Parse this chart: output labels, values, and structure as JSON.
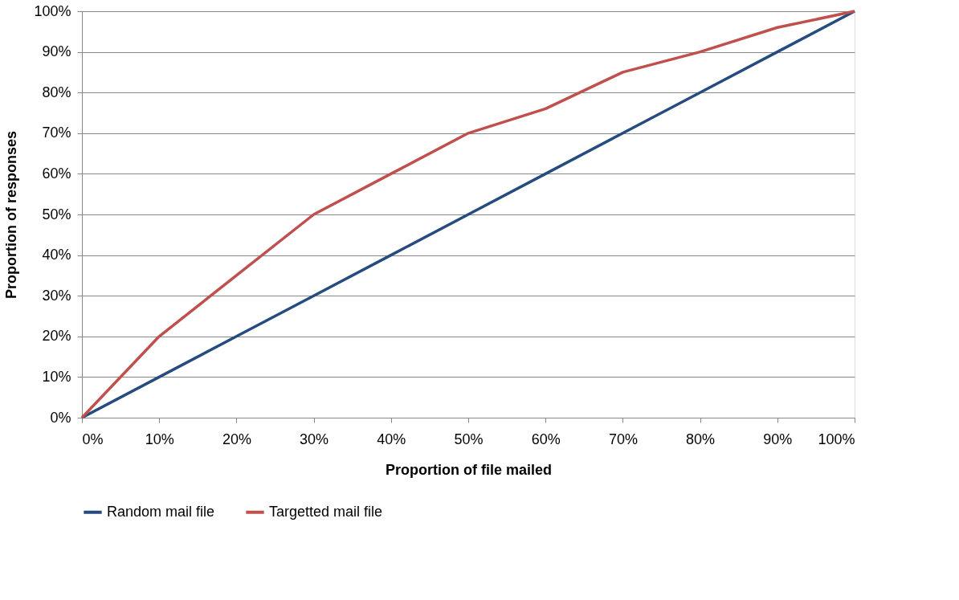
{
  "chart_data": {
    "type": "line",
    "xlabel": "Proportion of file mailed",
    "ylabel": "Proportion of responses",
    "x": [
      0,
      10,
      20,
      30,
      40,
      50,
      60,
      70,
      80,
      90,
      100
    ],
    "series": [
      {
        "name": "Random mail file",
        "color": "#254b7f",
        "values": [
          0,
          10,
          20,
          30,
          40,
          50,
          60,
          70,
          80,
          90,
          100
        ]
      },
      {
        "name": "Targetted mail file",
        "color": "#c0504d",
        "values": [
          0,
          20,
          35,
          50,
          60,
          70,
          76,
          85,
          90,
          96,
          100
        ]
      }
    ],
    "xlim": [
      0,
      100
    ],
    "ylim": [
      0,
      100
    ],
    "xticks": [
      {
        "value": 0,
        "label": "0%"
      },
      {
        "value": 10,
        "label": "10%"
      },
      {
        "value": 20,
        "label": "20%"
      },
      {
        "value": 30,
        "label": "30%"
      },
      {
        "value": 40,
        "label": "40%"
      },
      {
        "value": 50,
        "label": "50%"
      },
      {
        "value": 60,
        "label": "60%"
      },
      {
        "value": 70,
        "label": "70%"
      },
      {
        "value": 80,
        "label": "80%"
      },
      {
        "value": 90,
        "label": "90%"
      },
      {
        "value": 100,
        "label": "100%"
      }
    ],
    "yticks": [
      {
        "value": 0,
        "label": "0%"
      },
      {
        "value": 10,
        "label": "10%"
      },
      {
        "value": 20,
        "label": "20%"
      },
      {
        "value": 30,
        "label": "30%"
      },
      {
        "value": 40,
        "label": "40%"
      },
      {
        "value": 50,
        "label": "50%"
      },
      {
        "value": 60,
        "label": "60%"
      },
      {
        "value": 70,
        "label": "70%"
      },
      {
        "value": 80,
        "label": "80%"
      },
      {
        "value": 90,
        "label": "90%"
      },
      {
        "value": 100,
        "label": "100%"
      }
    ],
    "grid": "y",
    "legend": "bottom",
    "marker": "none",
    "line_style": "solid"
  }
}
